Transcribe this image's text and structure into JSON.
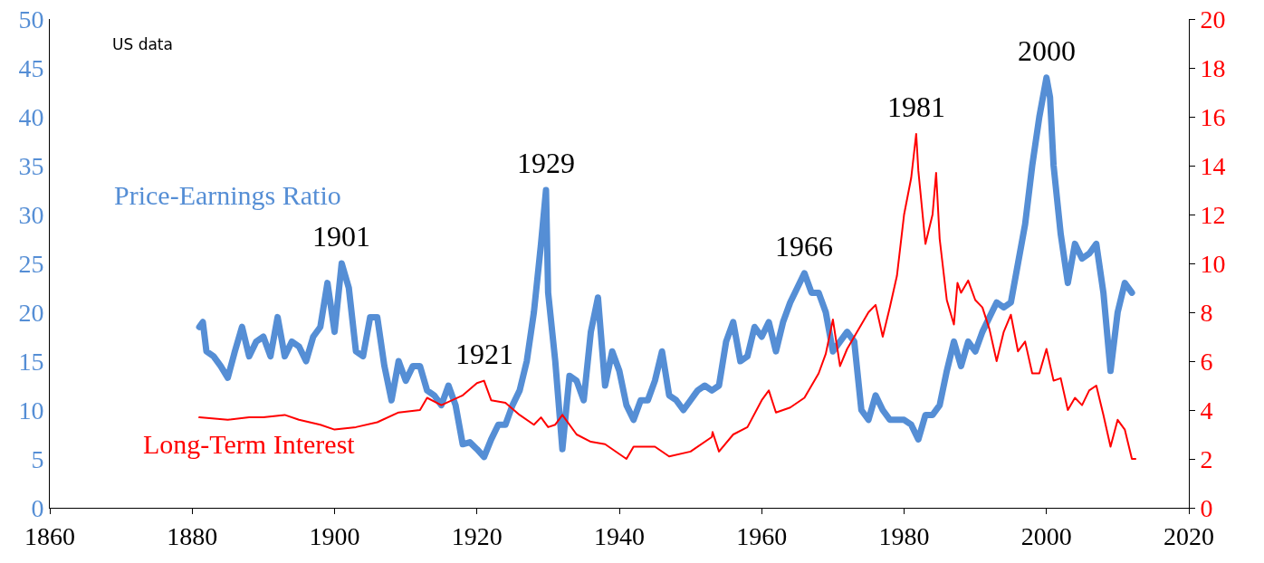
{
  "chart_data": {
    "type": "line",
    "legend": false,
    "grid": false,
    "marker": "none",
    "line_style": "solid",
    "xlim": [
      1860,
      2020
    ],
    "xticks": [
      1860,
      1880,
      1900,
      1920,
      1940,
      1960,
      1980,
      2000,
      2020
    ],
    "ylim": [
      0,
      50
    ],
    "yticks": [
      0,
      5,
      10,
      15,
      20,
      25,
      30,
      35,
      40,
      45,
      50
    ],
    "y2lim": [
      0,
      20
    ],
    "y2ticks": [
      0,
      2,
      4,
      6,
      8,
      10,
      12,
      14,
      16,
      18,
      20
    ],
    "annotations": [
      "US data",
      {
        "text": "1901",
        "x": 1901,
        "y": 25
      },
      {
        "text": "1921",
        "x": 1921,
        "y": 5.2
      },
      {
        "text": "1929",
        "x": 1929.7,
        "y": 32.5
      },
      {
        "text": "1966",
        "x": 1966,
        "y": 24
      },
      {
        "text": "1981",
        "x": 1981.7,
        "y": 38.2
      },
      {
        "text": "2000",
        "x": 2000,
        "y": 44
      }
    ],
    "series": [
      {
        "name": "Price-Earnings Ratio",
        "color": "#558ed5",
        "x": [
          1881,
          1881.5,
          1882,
          1883,
          1884,
          1885,
          1886,
          1887,
          1888,
          1889,
          1890,
          1891,
          1892,
          1893,
          1894,
          1895,
          1896,
          1897,
          1898,
          1899,
          1900,
          1901,
          1902,
          1903,
          1904,
          1905,
          1906,
          1907,
          1908,
          1909,
          1910,
          1911,
          1912,
          1913,
          1914,
          1915,
          1916,
          1917,
          1918,
          1919,
          1920,
          1921,
          1922,
          1923,
          1924,
          1925,
          1926,
          1927,
          1928,
          1929,
          1929.7,
          1930,
          1931,
          1932,
          1933,
          1934,
          1935,
          1936,
          1937,
          1938,
          1939,
          1940,
          1941,
          1942,
          1943,
          1944,
          1945,
          1946,
          1947,
          1948,
          1949,
          1950,
          1951,
          1952,
          1953,
          1954,
          1955,
          1956,
          1957,
          1958,
          1959,
          1960,
          1961,
          1962,
          1963,
          1964,
          1965,
          1966,
          1967,
          1968,
          1969,
          1970,
          1971,
          1972,
          1973,
          1974,
          1975,
          1976,
          1977,
          1978,
          1979,
          1980,
          1981,
          1982,
          1983,
          1984,
          1985,
          1986,
          1987,
          1988,
          1989,
          1990,
          1991,
          1992,
          1993,
          1994,
          1995,
          1996,
          1997,
          1998,
          1999,
          2000,
          2000.5,
          2001,
          2002,
          2003,
          2004,
          2005,
          2006,
          2007,
          2008,
          2009,
          2010,
          2011,
          2012
        ],
        "values": [
          18.5,
          19,
          16,
          15.5,
          14.5,
          13.3,
          16,
          18.5,
          15.5,
          17,
          17.5,
          15.5,
          19.5,
          15.5,
          17,
          16.5,
          15,
          17.5,
          18.5,
          23,
          18,
          25,
          22.5,
          16,
          15.5,
          19.5,
          19.5,
          14.5,
          11,
          15,
          13,
          14.5,
          14.5,
          12,
          11.5,
          10.5,
          12.5,
          10.5,
          6.5,
          6.7,
          6,
          5.2,
          7,
          8.5,
          8.5,
          10.5,
          12,
          15,
          20,
          27,
          32.5,
          22,
          15,
          6,
          13.5,
          13,
          11,
          18,
          21.5,
          12.5,
          16,
          14,
          10.5,
          9,
          11,
          11,
          13,
          16,
          11.5,
          11,
          10,
          11,
          12,
          12.5,
          12,
          12.5,
          17,
          19,
          15,
          15.5,
          18.5,
          17.5,
          19,
          16,
          19,
          21,
          22.5,
          24,
          22,
          22,
          20,
          16,
          17,
          18,
          17,
          10,
          9,
          11.5,
          10,
          9,
          9,
          9,
          8.5,
          7,
          9.5,
          9.5,
          10.5,
          14,
          17,
          14.5,
          17,
          16,
          18,
          19.5,
          21,
          20.5,
          21,
          25,
          29,
          35,
          40,
          44,
          42,
          35,
          28,
          23,
          27,
          25.5,
          26,
          27,
          22,
          14,
          20,
          23,
          22
        ]
      },
      {
        "name": "Long-Term Interest",
        "color": "#ff0000",
        "axis": "y2",
        "x": [
          1881,
          1885,
          1888,
          1890,
          1893,
          1895,
          1898,
          1900,
          1903,
          1906,
          1909,
          1912,
          1913,
          1915,
          1918,
          1920,
          1921,
          1922,
          1924,
          1926,
          1928,
          1929,
          1930,
          1931,
          1932,
          1934,
          1936,
          1938,
          1941,
          1942,
          1945,
          1947,
          1950,
          1953,
          1953.1,
          1954,
          1956,
          1958,
          1960,
          1961,
          1962,
          1964,
          1966,
          1968,
          1969,
          1970,
          1971,
          1972,
          1973,
          1975,
          1976,
          1977,
          1978,
          1979,
          1980,
          1981,
          1981.7,
          1982,
          1983,
          1984,
          1984.5,
          1985,
          1986,
          1987,
          1987.5,
          1988,
          1989,
          1990,
          1991,
          1992,
          1993,
          1994,
          1995,
          1996,
          1997,
          1998,
          1999,
          2000,
          2001,
          2002,
          2003,
          2004,
          2005,
          2006,
          2007,
          2008,
          2009,
          2010,
          2011,
          2012,
          2012.5
        ],
        "values": [
          3.7,
          3.6,
          3.7,
          3.7,
          3.8,
          3.6,
          3.4,
          3.2,
          3.3,
          3.5,
          3.9,
          4.0,
          4.5,
          4.2,
          4.6,
          5.1,
          5.2,
          4.4,
          4.3,
          3.8,
          3.4,
          3.7,
          3.3,
          3.4,
          3.8,
          3.0,
          2.7,
          2.6,
          2.0,
          2.5,
          2.5,
          2.1,
          2.3,
          2.9,
          3.1,
          2.3,
          3.0,
          3.3,
          4.4,
          4.8,
          3.9,
          4.1,
          4.5,
          5.5,
          6.3,
          7.7,
          5.8,
          6.5,
          7,
          8,
          8.3,
          7,
          8.2,
          9.5,
          12,
          13.5,
          15.3,
          13.8,
          10.8,
          12,
          13.7,
          11,
          8.5,
          7.5,
          9.2,
          8.8,
          9.3,
          8.5,
          8.2,
          7.3,
          6,
          7.2,
          7.9,
          6.4,
          6.8,
          5.5,
          5.5,
          6.5,
          5.2,
          5.3,
          4.0,
          4.5,
          4.2,
          4.8,
          5.0,
          3.8,
          2.5,
          3.6,
          3.2,
          2.0,
          2.0
        ]
      }
    ]
  }
}
